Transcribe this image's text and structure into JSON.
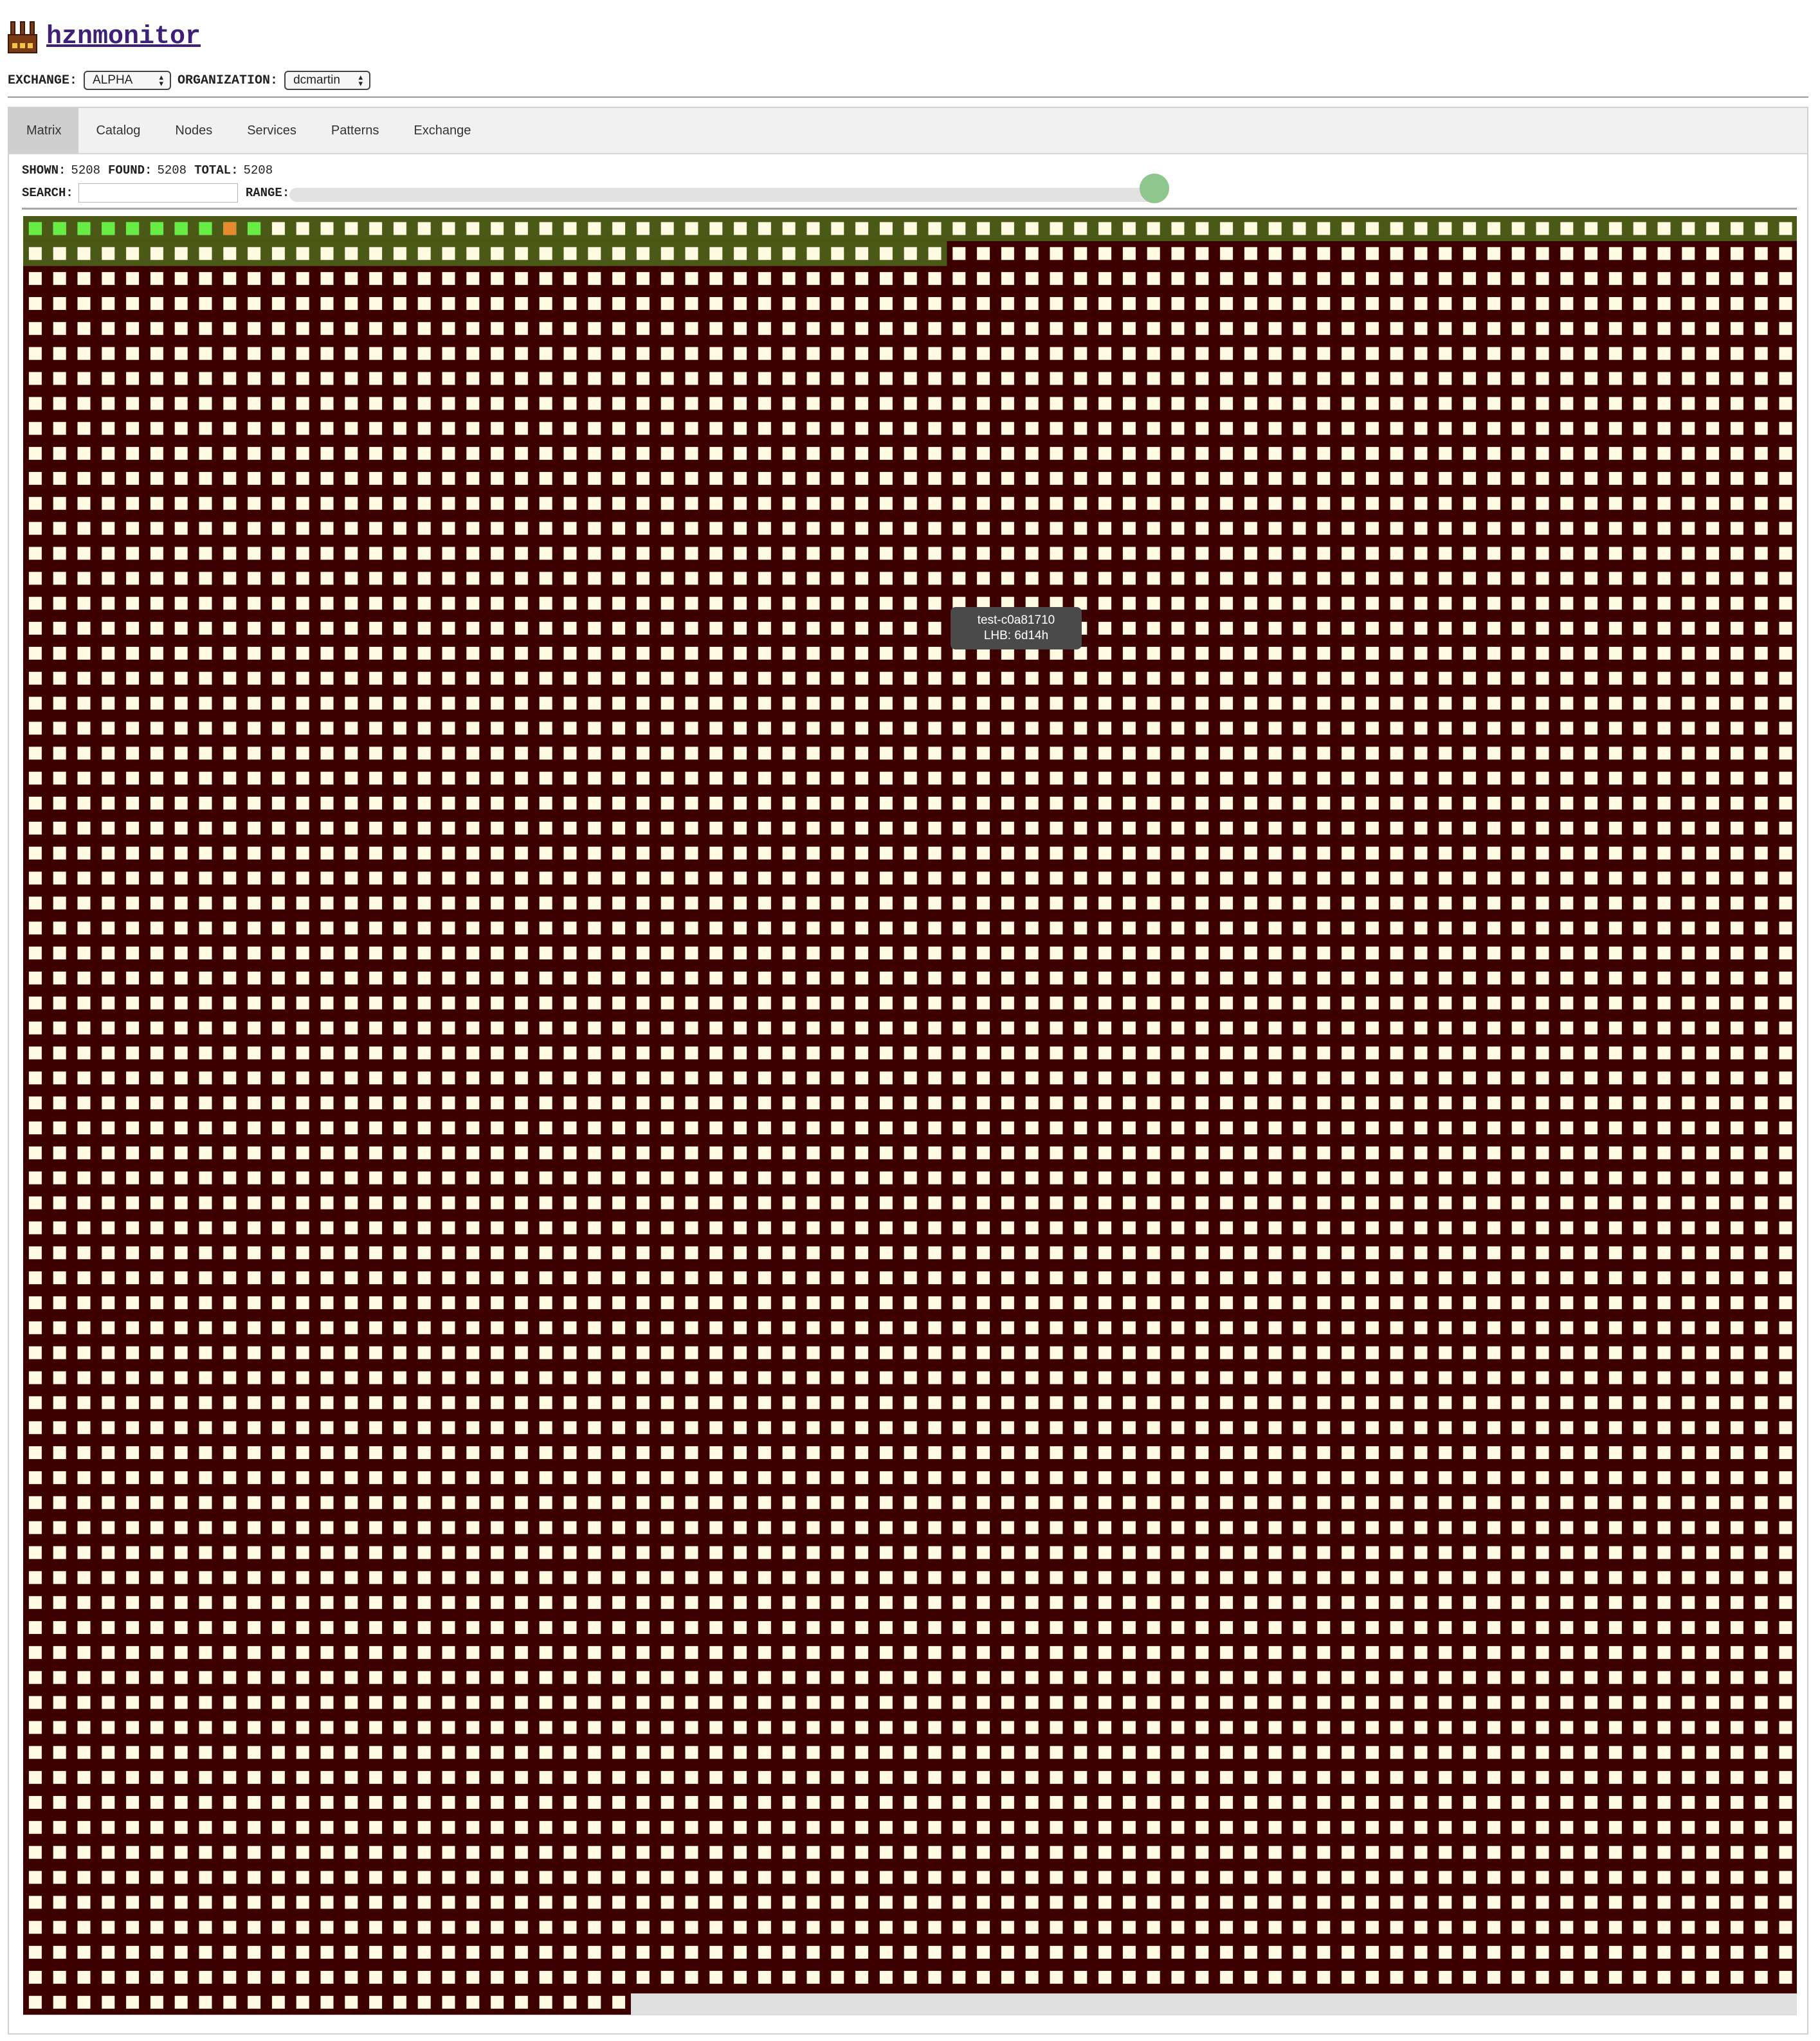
{
  "app": {
    "title": "hznmonitor",
    "logo_icon": "factory-icon"
  },
  "selectors": {
    "exchange_label": "EXCHANGE:",
    "exchange_value": "ALPHA",
    "organization_label": "ORGANIZATION:",
    "organization_value": "dcmartin"
  },
  "tabs": [
    {
      "label": "Matrix",
      "active": true
    },
    {
      "label": "Catalog",
      "active": false
    },
    {
      "label": "Nodes",
      "active": false
    },
    {
      "label": "Services",
      "active": false
    },
    {
      "label": "Patterns",
      "active": false
    },
    {
      "label": "Exchange",
      "active": false
    }
  ],
  "stats": {
    "shown_label": "SHOWN:",
    "shown_value": "5208",
    "found_label": "FOUND:",
    "found_value": "5208",
    "total_label": "TOTAL:",
    "total_value": "5208"
  },
  "controls": {
    "search_label": "SEARCH:",
    "search_value": "",
    "range_label": "RANGE:",
    "range_fraction": 1.0
  },
  "matrix": {
    "total_nodes": 5208,
    "recent_nodes": 111,
    "active_nodes": 10,
    "warning_node_index": 8,
    "colors": {
      "stale_bg": "#3d0000",
      "recent_bg": "#4a5a16",
      "cell": "#fffbe2",
      "active": "#66ee44",
      "warning": "#e98a2e",
      "empty": "#e0e0e0"
    }
  },
  "tooltip": {
    "name": "test-c0a81710",
    "lhb": "LHB: 6d14h"
  }
}
